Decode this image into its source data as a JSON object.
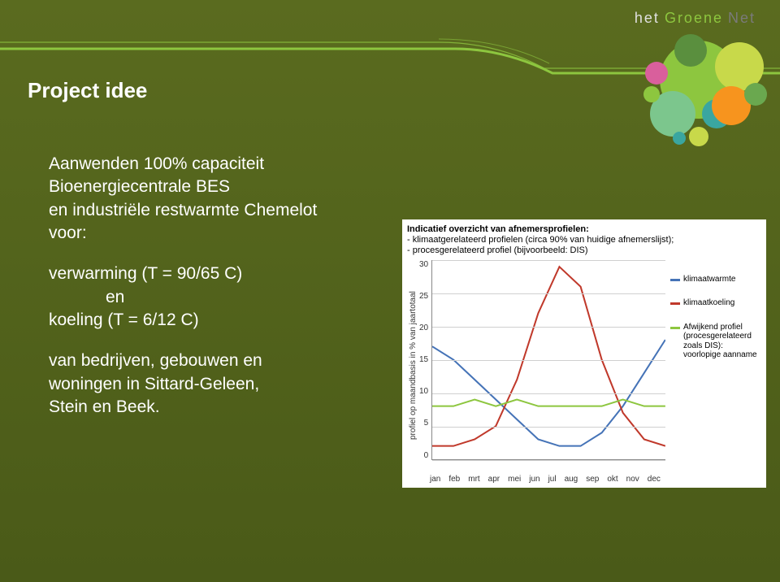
{
  "header": {
    "word1": "het",
    "word2": "Groene",
    "word3": "Net"
  },
  "title": "Project idee",
  "body": {
    "line1": "Aanwenden 100% capaciteit",
    "line2": "Bioenergiecentrale BES",
    "line3": "en industriële restwarmte Chemelot",
    "line4": "voor:",
    "line5": "verwarming (T = 90/65 C)",
    "line6": "en",
    "line7": "koeling  (T = 6/12 C)",
    "line8": "van bedrijven, gebouwen en",
    "line9": "woningen in Sittard-Geleen,",
    "line10": "Stein en Beek."
  },
  "chart": {
    "type": "line",
    "title_line1": "Indicatief overzicht van afnemersprofielen:",
    "title_line2": "- klimaatgerelateerd profielen (circa 90% van huidige afnemerslijst);",
    "title_line3": "- procesgerelateerd profiel (bijvoorbeeld: DIS)",
    "ylabel": "profiel op maandbasis in %\nvan jaartotaal",
    "ylim": [
      0,
      30
    ],
    "ytick_step": 5,
    "yticks": [
      "30",
      "25",
      "20",
      "15",
      "10",
      "5",
      "0"
    ],
    "xlabels": [
      "jan",
      "feb",
      "mrt",
      "apr",
      "mei",
      "jun",
      "jul",
      "aug",
      "sep",
      "okt",
      "nov",
      "dec"
    ],
    "background_color": "#ffffff",
    "grid_color": "#d0d0d0",
    "series": [
      {
        "name": "klimaatwarmte",
        "color": "#4573b7",
        "values": [
          17,
          15,
          12,
          9,
          6,
          3,
          2,
          2,
          4,
          8,
          13,
          18
        ]
      },
      {
        "name": "klimaatkoeling",
        "color": "#c0392b",
        "values": [
          2,
          2,
          3,
          5,
          12,
          22,
          29,
          26,
          15,
          7,
          3,
          2
        ]
      },
      {
        "name": "Afwijkend profiel (procesgerelateerd zoals DIS): voorlopige aanname",
        "color": "#8dc63f",
        "values": [
          8,
          8,
          9,
          8,
          9,
          8,
          8,
          8,
          8,
          9,
          8,
          8
        ]
      }
    ],
    "line_width": 2,
    "title_fontsize": 11,
    "label_fontsize": 10
  },
  "decor": {
    "line_color": "#8dc63f",
    "circle_colors": [
      "#8dc63f",
      "#d95f9c",
      "#3aa6a0",
      "#f7941e",
      "#c8d94a",
      "#7cc68d",
      "#5a8f3e"
    ]
  }
}
